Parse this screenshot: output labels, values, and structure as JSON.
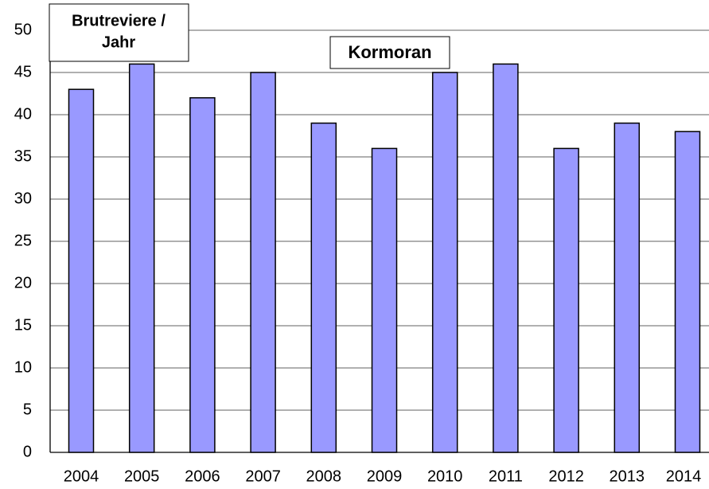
{
  "chart_data": {
    "type": "bar",
    "title": "Kormoran",
    "y_label": [
      "Brutreviere /",
      "Jahr"
    ],
    "categories": [
      "2004",
      "2005",
      "2006",
      "2007",
      "2008",
      "2009",
      "2010",
      "2011",
      "2012",
      "2013",
      "2014"
    ],
    "values": [
      43,
      46,
      42,
      45,
      39,
      36,
      45,
      46,
      36,
      39,
      38
    ],
    "color": "#9999ff",
    "ylim": [
      0,
      50
    ],
    "yticks": [
      0,
      5,
      10,
      15,
      20,
      25,
      30,
      35,
      40,
      45,
      50
    ],
    "grid": true
  }
}
